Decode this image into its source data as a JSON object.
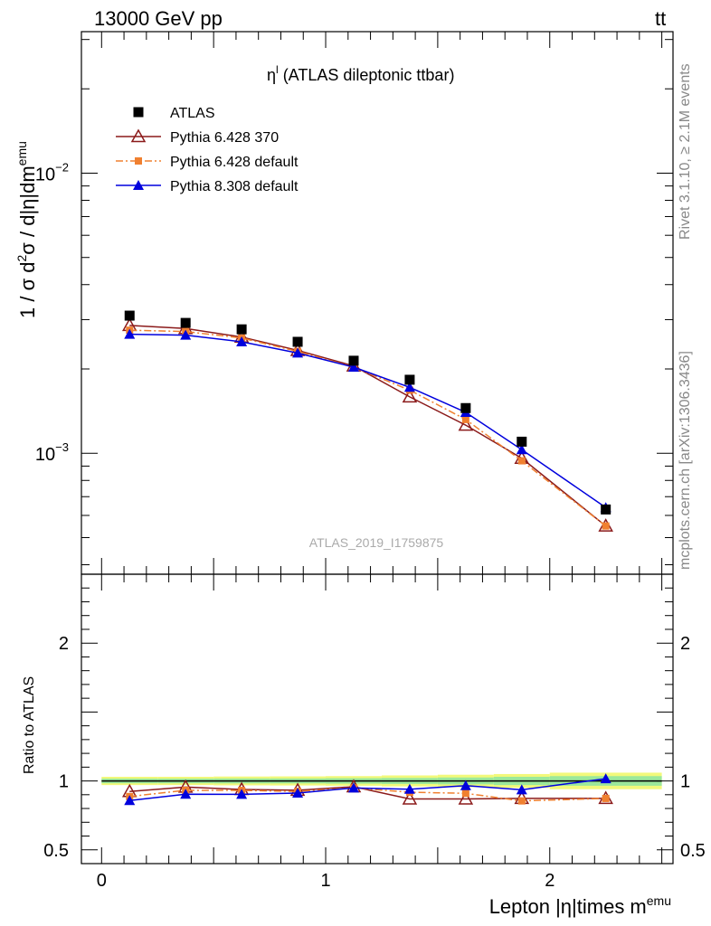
{
  "header": {
    "left_label": "13000 GeV pp",
    "right_label_base": "tt",
    "right_label_bar": "̄"
  },
  "side_labels": {
    "rivet_base": "Rivet 3.1.10, ",
    "rivet_geq": "≥",
    "rivet_events": " 2.1M events",
    "mcplots": "mcplots.cern.ch [arXiv:1306.3436]"
  },
  "chart_data": [
    {
      "type": "line",
      "title_main": "η",
      "title_sup": "l",
      "title_rest": " (ATLAS dileptonic ttbar)",
      "ylabel_parts": [
        "1 / σ  d",
        "2",
        "σ / d|η|dm",
        "emu"
      ],
      "yscale": "log",
      "ylim": [
        0.00037,
        0.032
      ],
      "xlim": [
        -0.09,
        2.55
      ],
      "yticks_labeled": [
        {
          "value": 0.01,
          "base": "10",
          "exp": "−2"
        },
        {
          "value": 0.001,
          "base": "10",
          "exp": "−3"
        }
      ],
      "watermark": "ATLAS_2019_I1759875",
      "legend_position": "top-left",
      "x": [
        0.125,
        0.375,
        0.625,
        0.875,
        1.125,
        1.375,
        1.625,
        1.875,
        2.25
      ],
      "series": [
        {
          "name": "ATLAS",
          "color": "#000000",
          "marker": "square",
          "line": "none",
          "values": [
            0.0031,
            0.00292,
            0.00277,
            0.0025,
            0.00214,
            0.00183,
            0.00145,
            0.0011,
            0.00063
          ]
        },
        {
          "name": "Pythia 6.428 370",
          "color": "#8b1a1a",
          "marker": "open-triangle",
          "line": "solid",
          "values": [
            0.00286,
            0.00279,
            0.0026,
            0.00233,
            0.00205,
            0.00159,
            0.00126,
            0.00096,
            0.00055
          ]
        },
        {
          "name": "Pythia 6.428 default",
          "color": "#f08030",
          "marker": "filled-square",
          "line": "dashdot",
          "values": [
            0.00275,
            0.00272,
            0.00258,
            0.00231,
            0.00203,
            0.00168,
            0.00132,
            0.00094,
            0.00055
          ]
        },
        {
          "name": "Pythia 8.308 default",
          "color": "#0000dd",
          "marker": "filled-triangle",
          "line": "solid",
          "values": [
            0.00266,
            0.00264,
            0.0025,
            0.00228,
            0.00203,
            0.00172,
            0.0014,
            0.00103,
            0.00064
          ]
        }
      ]
    },
    {
      "type": "line",
      "ylabel": "Ratio to ATLAS",
      "xlabel_main": "Lepton |η|times m",
      "xlabel_sup": "emu",
      "ylim": [
        0.4,
        2.5
      ],
      "xlim": [
        -0.09,
        2.55
      ],
      "yticks_labeled": [
        {
          "value": 0.5,
          "label": "0.5"
        },
        {
          "value": 1,
          "label": "1"
        },
        {
          "value": 2,
          "label": "2"
        }
      ],
      "xticks_labeled": [
        {
          "value": 0,
          "label": "0"
        },
        {
          "value": 1,
          "label": "1"
        },
        {
          "value": 2,
          "label": "2"
        }
      ],
      "x": [
        0.125,
        0.375,
        0.625,
        0.875,
        1.125,
        1.375,
        1.625,
        1.875,
        2.25
      ],
      "band": {
        "inner_color": "#9be89b",
        "outer_color": "#f2f97a",
        "inner_half_width": [
          0.017,
          0.017,
          0.018,
          0.018,
          0.02,
          0.022,
          0.025,
          0.03,
          0.035
        ],
        "outer_half_width": [
          0.03,
          0.03,
          0.032,
          0.033,
          0.035,
          0.04,
          0.045,
          0.05,
          0.06
        ]
      },
      "series": [
        {
          "name": "Pythia 6.428 370",
          "color": "#8b1a1a",
          "marker": "open-triangle",
          "line": "solid",
          "values": [
            0.923,
            0.955,
            0.938,
            0.932,
            0.958,
            0.869,
            0.869,
            0.873,
            0.873
          ]
        },
        {
          "name": "Pythia 6.428 default",
          "color": "#f08030",
          "marker": "filled-square",
          "line": "dashdot",
          "values": [
            0.887,
            0.932,
            0.931,
            0.924,
            0.949,
            0.918,
            0.91,
            0.855,
            0.873
          ]
        },
        {
          "name": "Pythia 8.308 default",
          "color": "#0000dd",
          "marker": "filled-triangle",
          "line": "solid",
          "values": [
            0.858,
            0.904,
            0.903,
            0.912,
            0.949,
            0.94,
            0.966,
            0.936,
            1.016
          ]
        }
      ]
    }
  ]
}
